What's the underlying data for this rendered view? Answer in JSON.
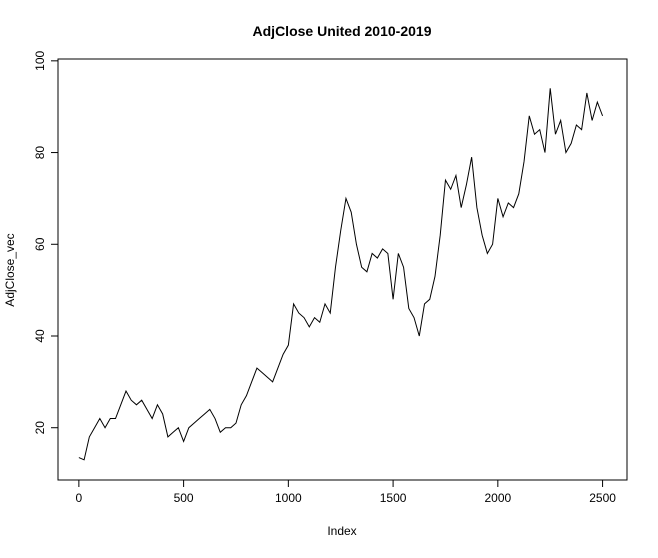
{
  "chart_data": {
    "type": "line",
    "title": "AdjClose United 2010-2019",
    "x_label": "Index",
    "y_label": "AdjClose_vec",
    "x": [
      0,
      25,
      50,
      75,
      100,
      125,
      150,
      175,
      200,
      225,
      250,
      275,
      300,
      325,
      350,
      375,
      400,
      425,
      450,
      475,
      500,
      525,
      550,
      575,
      600,
      625,
      650,
      675,
      700,
      725,
      750,
      775,
      800,
      825,
      850,
      875,
      900,
      925,
      950,
      975,
      1000,
      1025,
      1050,
      1075,
      1100,
      1125,
      1150,
      1175,
      1200,
      1225,
      1250,
      1275,
      1300,
      1325,
      1350,
      1375,
      1400,
      1425,
      1450,
      1475,
      1500,
      1525,
      1550,
      1575,
      1600,
      1625,
      1650,
      1675,
      1700,
      1725,
      1750,
      1775,
      1800,
      1825,
      1850,
      1875,
      1900,
      1925,
      1950,
      1975,
      2000,
      2025,
      2050,
      2075,
      2100,
      2125,
      2150,
      2175,
      2200,
      2225,
      2250,
      2275,
      2300,
      2325,
      2350,
      2375,
      2400,
      2425,
      2450,
      2475,
      2500
    ],
    "series": [
      {
        "color": "#000000",
        "values": [
          13.5,
          13,
          18,
          20,
          22,
          20,
          22,
          22,
          25,
          28,
          26,
          25,
          26,
          24,
          22,
          25,
          23,
          18,
          19,
          20,
          17,
          20,
          21,
          22,
          23,
          24,
          22,
          19,
          20,
          20,
          21,
          25,
          27,
          30,
          33,
          32,
          31,
          30,
          33,
          36,
          38,
          47,
          45,
          44,
          42,
          44,
          43,
          47,
          45,
          55,
          63,
          70,
          67,
          60,
          55,
          54,
          58,
          57,
          59,
          58,
          48,
          58,
          55,
          46,
          44,
          40,
          47,
          48,
          53,
          62,
          74,
          72,
          75,
          68,
          73,
          79,
          68,
          62,
          58,
          60,
          70,
          66,
          69,
          68,
          71,
          78,
          88,
          84,
          85,
          80,
          94,
          84,
          87,
          80,
          82,
          86,
          85,
          93,
          87,
          91,
          88
        ]
      }
    ],
    "xlim": [
      -99.6,
      2616.6
    ],
    "ylim": [
      8.6,
      100.4
    ],
    "xticks": [
      0,
      500,
      1000,
      1500,
      2000,
      2500
    ],
    "yticks": [
      20,
      40,
      60,
      80,
      100
    ]
  }
}
